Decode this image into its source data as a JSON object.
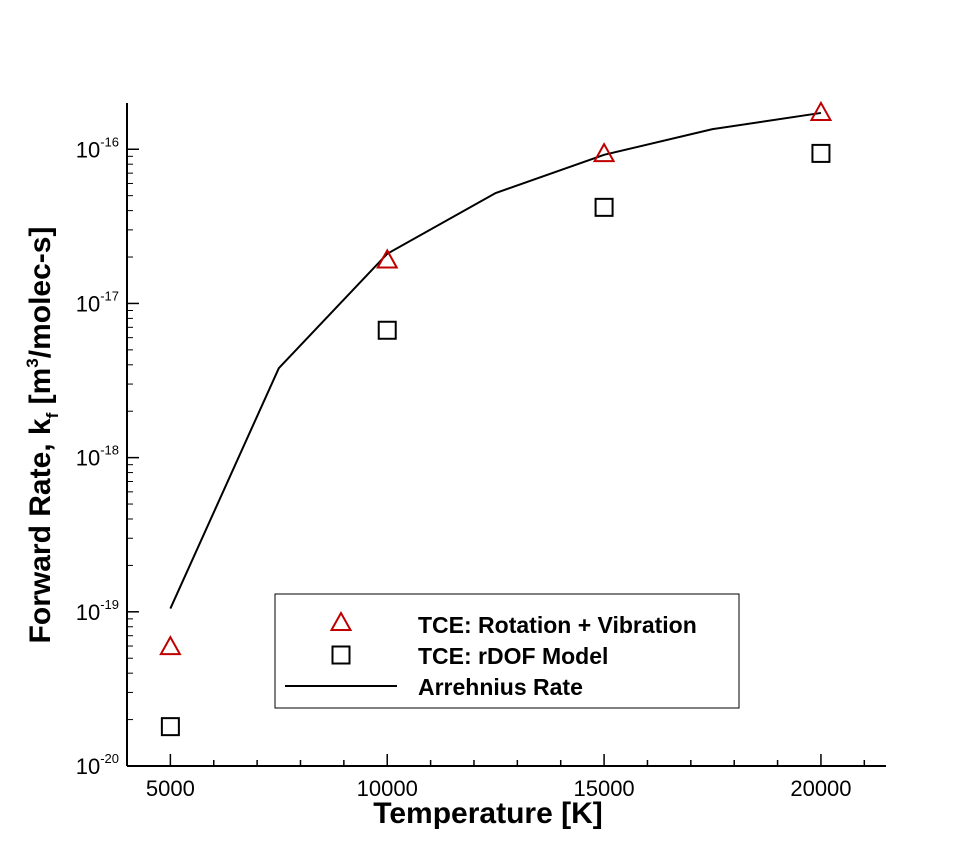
{
  "chart_data": {
    "type": "scatter",
    "x_scale": "linear",
    "y_scale": "log",
    "xlim": [
      4000,
      21500
    ],
    "ylim_exponents": [
      -20,
      -15.7
    ],
    "xlabel": "Temperature [K]",
    "ylabel": {
      "prefix": "Forward Rate, k",
      "sub": "f",
      "mid": " [m",
      "sup": "3",
      "suffix": "/molec-s]"
    },
    "x_ticks": [
      5000,
      10000,
      15000,
      20000
    ],
    "x_tick_labels": [
      "5000",
      "10000",
      "15000",
      "20000"
    ],
    "y_ticks": [
      {
        "exp": -20,
        "base": "10",
        "exp_label": "-20"
      },
      {
        "exp": -19,
        "base": "10",
        "exp_label": "-19"
      },
      {
        "exp": -18,
        "base": "10",
        "exp_label": "-18"
      },
      {
        "exp": -17,
        "base": "10",
        "exp_label": "-17"
      },
      {
        "exp": -16,
        "base": "10",
        "exp_label": "-16"
      }
    ],
    "series": [
      {
        "name": "TCE: Rotation + Vibration",
        "marker": "triangle",
        "color": "#c00000",
        "x": [
          5000,
          10000,
          15000,
          20000
        ],
        "y": [
          5.9e-20,
          1.9e-17,
          9.3e-17,
          1.72e-16
        ]
      },
      {
        "name": "TCE: rDOF Model",
        "marker": "square",
        "color": "#000000",
        "x": [
          5000,
          10000,
          15000,
          20000
        ],
        "y": [
          1.8e-20,
          6.7e-18,
          4.2e-17,
          9.4e-17
        ]
      },
      {
        "name": "Arrehnius Rate",
        "marker": "line",
        "color": "#000000",
        "x": [
          5000,
          7500,
          10000,
          12500,
          15000,
          17500,
          20000
        ],
        "y": [
          1.05e-19,
          3.8e-18,
          2.1e-17,
          5.2e-17,
          9.2e-17,
          1.35e-16,
          1.72e-16
        ]
      }
    ],
    "legend_position": "bottom-center",
    "grid": false
  }
}
